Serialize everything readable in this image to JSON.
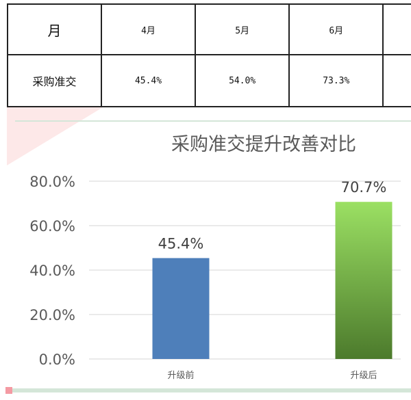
{
  "table": {
    "header": [
      "月",
      "4月",
      "5月",
      "6月"
    ],
    "rows": [
      [
        "采购准交",
        "45.4%",
        "54.0%",
        "73.3%"
      ]
    ]
  },
  "chart_data": {
    "type": "bar",
    "title": "采购准交提升改善对比",
    "categories": [
      "升级前",
      "升级后"
    ],
    "values": [
      45.4,
      70.7
    ],
    "data_labels": [
      "45.4%",
      "70.7%"
    ],
    "ylim": [
      0,
      80
    ],
    "yticks": [
      0,
      20,
      40,
      60,
      80
    ],
    "ytick_labels": [
      "0.0%",
      "20.0%",
      "40.0%",
      "60.0%",
      "80.0%"
    ],
    "grid": true,
    "colors": [
      "#4e7fba",
      "#6aa844"
    ]
  }
}
